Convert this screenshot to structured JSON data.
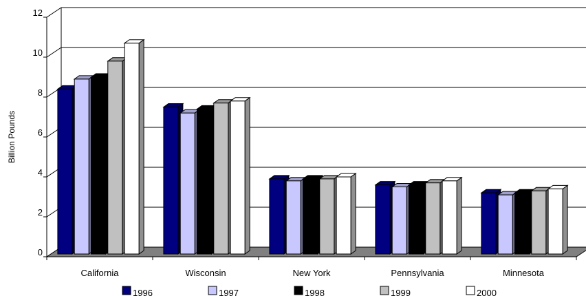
{
  "chart_data": {
    "type": "bar",
    "ylabel": "Billion Pounds",
    "ylim": [
      0,
      12
    ],
    "yticks": [
      "0",
      "2",
      "4",
      "6",
      "8",
      "10",
      "12"
    ],
    "categories": [
      "California",
      "Wisconsin",
      "New York",
      "Pennsylvania",
      "Minnesota"
    ],
    "series": [
      {
        "name": "1996",
        "color": "#000080",
        "values": [
          8.4,
          7.5,
          3.9,
          3.6,
          3.2
        ]
      },
      {
        "name": "1997",
        "color": "#C8C8FF",
        "values": [
          8.9,
          7.2,
          3.8,
          3.5,
          3.1
        ]
      },
      {
        "name": "1998",
        "color": "#000000",
        "values": [
          9.0,
          7.4,
          3.9,
          3.6,
          3.2
        ]
      },
      {
        "name": "1999",
        "color": "#C0C0C0",
        "values": [
          9.8,
          7.7,
          3.9,
          3.7,
          3.3
        ]
      },
      {
        "name": "2000",
        "color": "#FFFFFF",
        "values": [
          10.7,
          7.8,
          4.0,
          3.8,
          3.4
        ]
      }
    ],
    "grid": true,
    "legend": "bottom"
  }
}
